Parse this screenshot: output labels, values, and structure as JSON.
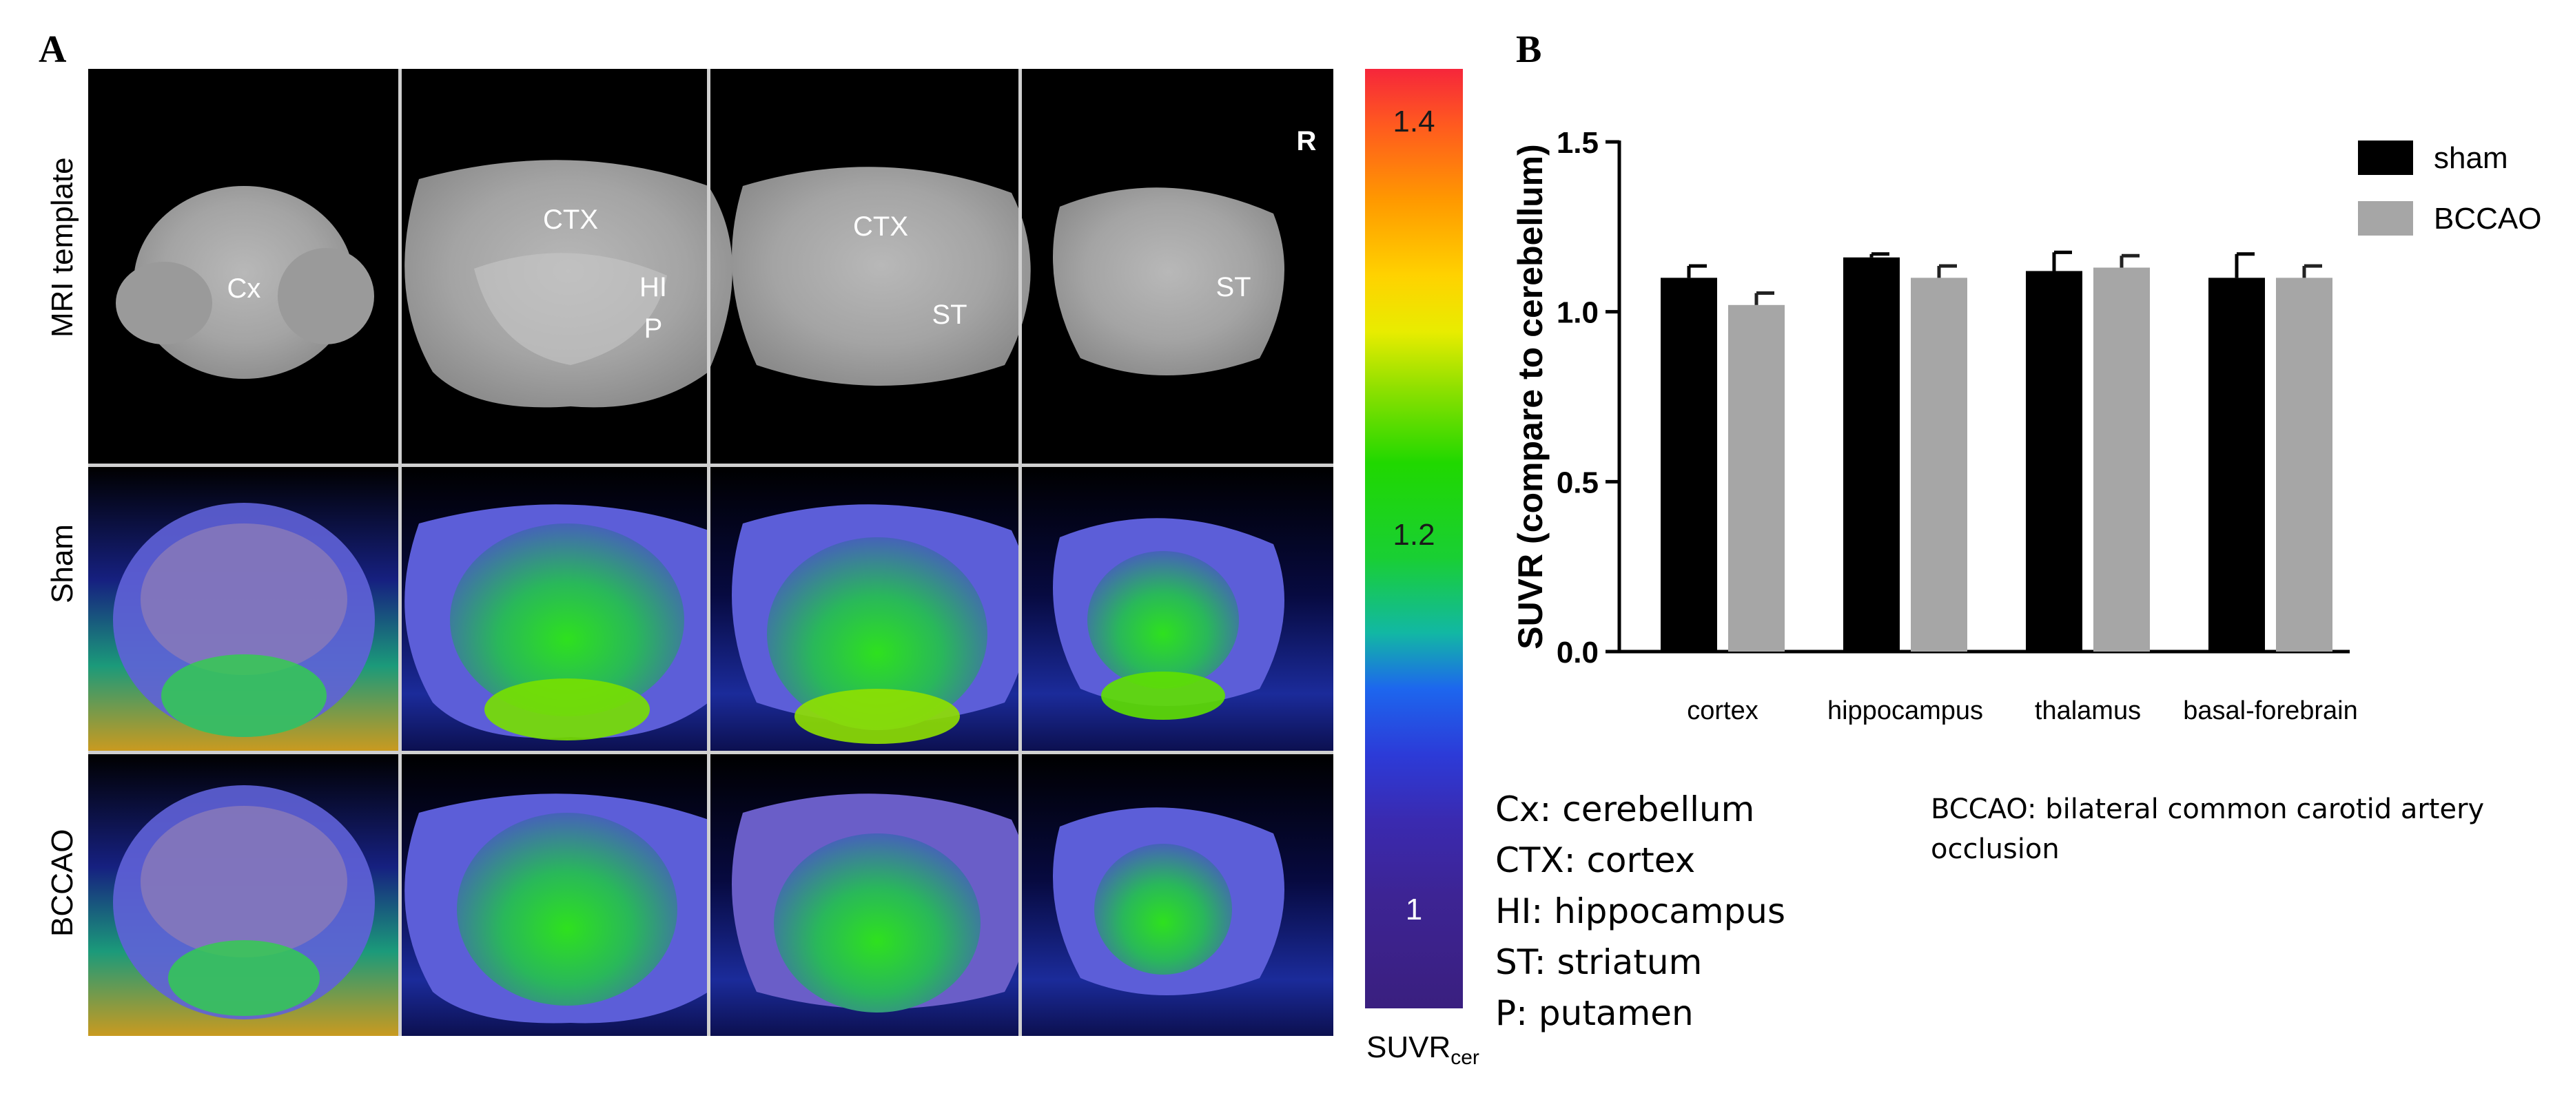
{
  "panels": {
    "a": "A",
    "b": "B"
  },
  "row_labels": [
    "MRI template",
    "Sham",
    "BCCAO"
  ],
  "region_labels": {
    "mri_col1": "Cx",
    "mri_col2_top": "CTX",
    "mri_col2_hi": "HI",
    "mri_col2_p": "P",
    "mri_col3_top": "CTX",
    "mri_col3_st": "ST",
    "mri_col4_st": "ST",
    "orientation": "R"
  },
  "colorbar": {
    "ticks": [
      "1.4",
      "1.2",
      "1"
    ],
    "label_main": "SUVR",
    "label_sub": "cer"
  },
  "chart_data": {
    "type": "bar",
    "categories": [
      "cortex",
      "hippocampus",
      "thalamus",
      "basal-forebrain"
    ],
    "series": [
      {
        "name": "sham",
        "values": [
          1.1,
          1.16,
          1.12,
          1.1
        ],
        "errors": [
          0.035,
          0.01,
          0.055,
          0.07
        ],
        "color": "#000000"
      },
      {
        "name": "BCCAO",
        "values": [
          1.02,
          1.1,
          1.13,
          1.1
        ],
        "errors": [
          0.035,
          0.035,
          0.035,
          0.035
        ],
        "color": "#a6a6a6"
      }
    ],
    "ylabel": "SUVR (compare to cerebellum)",
    "yticks": [
      "0.0",
      "0.5",
      "1.0",
      "1.5"
    ],
    "ylim": [
      0,
      1.5
    ],
    "legend_placement": "top-right"
  },
  "abbreviations": {
    "left": [
      "Cx: cerebellum",
      "CTX: cortex",
      "HI: hippocampus",
      "ST: striatum",
      "P: putamen"
    ],
    "right": "BCCAO: bilateral common carotid artery occlusion"
  }
}
